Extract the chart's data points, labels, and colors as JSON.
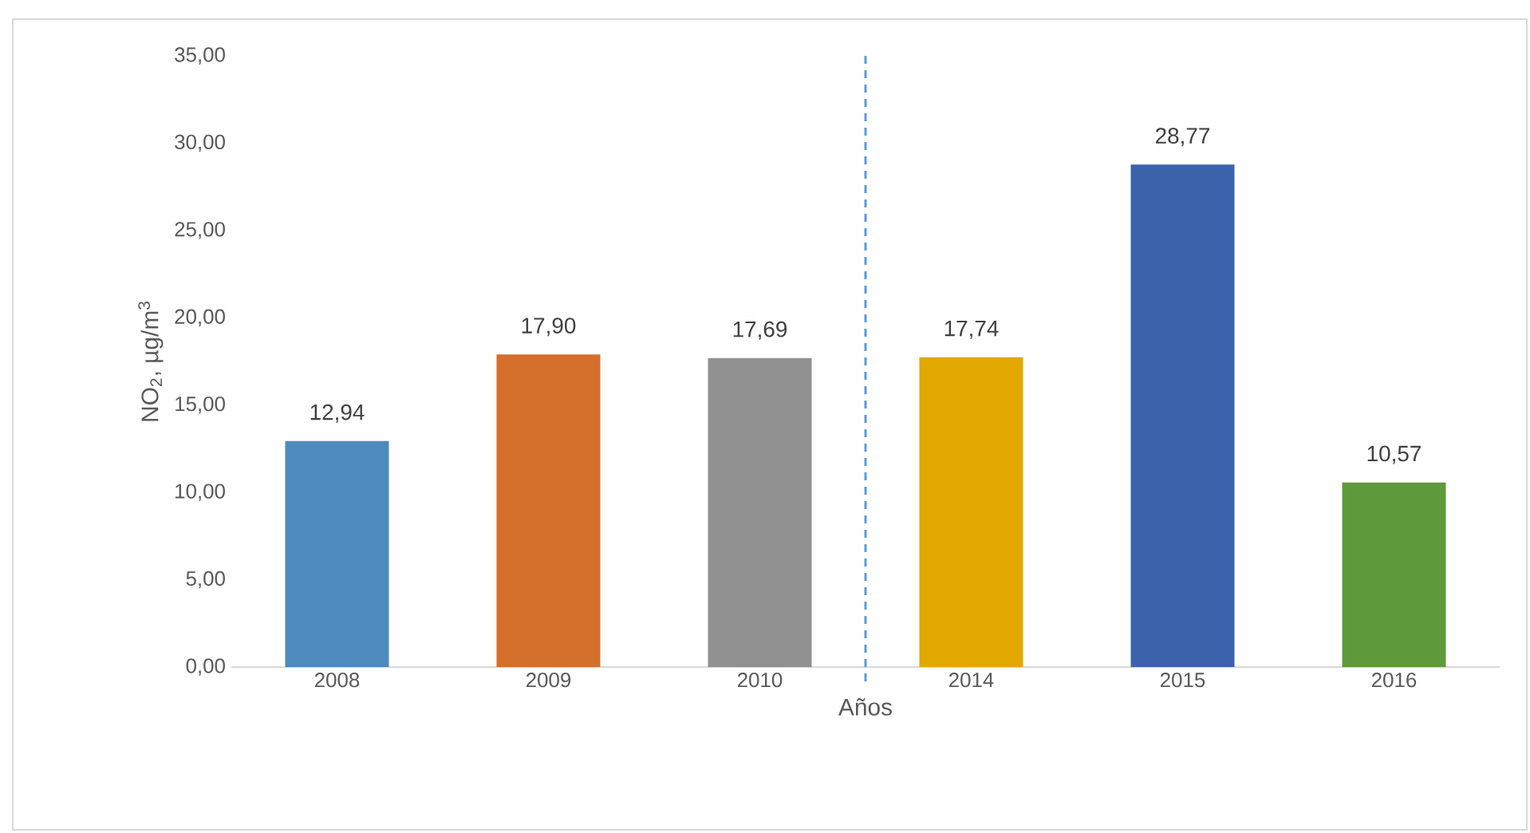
{
  "chart_data": {
    "type": "bar",
    "xlabel": "Años",
    "ylabel": "NO$_{2}$, µg/m$^{3}$",
    "categories": [
      "2008",
      "2009",
      "2010",
      "2014",
      "2015",
      "2016"
    ],
    "values": [
      12.94,
      17.9,
      17.69,
      17.74,
      28.77,
      10.57
    ],
    "colors": [
      "#4e8abe",
      "#d46f2c",
      "#909090",
      "#e1a800",
      "#3b62ab",
      "#5e9a3c"
    ],
    "value_labels": [
      "12,94",
      "17,90",
      "17,69",
      "17,74",
      "28,77",
      "10,57"
    ],
    "ylim": [
      0,
      35
    ],
    "yticks": [
      {
        "value": 0,
        "label": "0,00"
      },
      {
        "value": 5,
        "label": "5,00"
      },
      {
        "value": 10,
        "label": "10,00"
      },
      {
        "value": 15,
        "label": "15,00"
      },
      {
        "value": 20,
        "label": "20,00"
      },
      {
        "value": 25,
        "label": "25,00"
      },
      {
        "value": 30,
        "label": "30,00"
      },
      {
        "value": 35,
        "label": "35,00"
      }
    ],
    "grid": false,
    "legend": false
  }
}
